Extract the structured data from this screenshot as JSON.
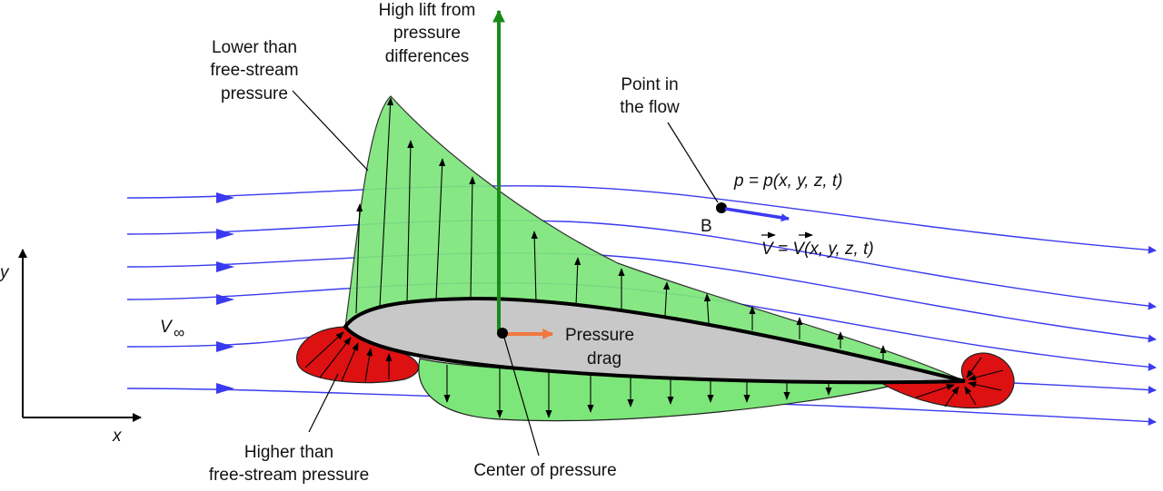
{
  "labels": {
    "lift": [
      "High lift from",
      "pressure",
      "differences"
    ],
    "lower_pressure": [
      "Lower than",
      "free-stream",
      "pressure"
    ],
    "higher_pressure": [
      "Higher than",
      "free-stream pressure"
    ],
    "point": [
      "Point in",
      "the flow"
    ],
    "point_name": "B",
    "pressure_drag": [
      "Pressure",
      "drag"
    ],
    "center_of_pressure": "Center of pressure",
    "pressure_eq": "p = p(x, y, z, t)",
    "velocity_eq": "V = V(x, y, z, t)",
    "v_inf": "V",
    "v_inf_sub": "∞",
    "x_axis": "x",
    "y_axis": "y"
  },
  "colors": {
    "suction_region": "#7de67a",
    "high_pressure_region": "#dd1111",
    "airfoil": "#c8c8c8",
    "streamline": "#3a3af0",
    "lift_arrow": "#1a8a1a",
    "drag_arrow": "#f07840"
  }
}
